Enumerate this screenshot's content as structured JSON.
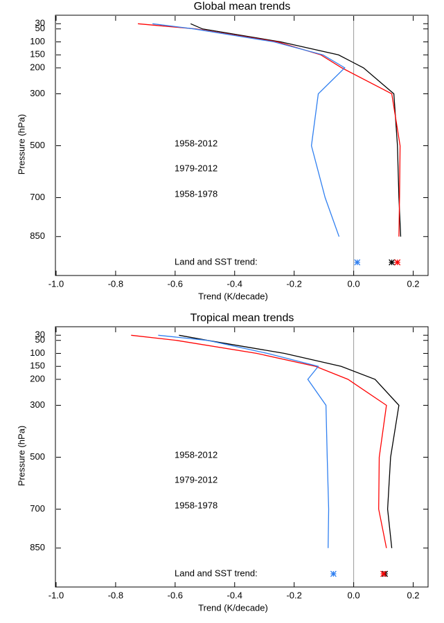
{
  "chart_data": [
    {
      "type": "line",
      "title": "Global mean trends",
      "x_label": "Trend (K/decade)",
      "y_label": "Pressure (hPa)",
      "y": [
        30,
        50,
        100,
        150,
        200,
        300,
        500,
        700,
        850
      ],
      "series": [
        {
          "name": "1958-2012",
          "color": "#000000",
          "values": [
            -0.548,
            -0.508,
            -0.245,
            -0.051,
            0.033,
            0.135,
            0.147,
            0.152,
            0.158
          ],
          "surface_trend": 0.128
        },
        {
          "name": "1979-2012",
          "color": "#ff0000",
          "values": [
            -0.725,
            -0.53,
            -0.256,
            -0.11,
            -0.04,
            0.128,
            0.156,
            0.154,
            0.152
          ],
          "surface_trend": 0.147
        },
        {
          "name": "1958-1978",
          "color": "#2f7ff0",
          "values": [
            -0.676,
            -0.536,
            -0.268,
            -0.103,
            -0.03,
            -0.119,
            -0.142,
            -0.096,
            -0.049
          ],
          "surface_trend": 0.012
        }
      ],
      "annotation": "Land and SST trend:",
      "xlim": [
        -1.0,
        0.25
      ],
      "xticks": [
        {
          "value": -1.0,
          "label": "-1.0"
        },
        -0.8,
        -0.6,
        -0.4,
        -0.2,
        {
          "value": 0,
          "label": "0.0"
        },
        0.2
      ],
      "ylim": [
        0,
        1000
      ],
      "y_inverted": true,
      "yticks": [
        30,
        50,
        100,
        150,
        200,
        300,
        500,
        700,
        850
      ]
    },
    {
      "type": "line",
      "title": "Tropical mean trends",
      "x_label": "Trend (K/decade)",
      "y_label": "Pressure (hPa)",
      "y": [
        30,
        50,
        100,
        150,
        200,
        300,
        500,
        700,
        850
      ],
      "series": [
        {
          "name": "1958-2012",
          "color": "#000000",
          "values": [
            -0.587,
            -0.49,
            -0.233,
            -0.042,
            0.072,
            0.152,
            0.124,
            0.114,
            0.128
          ],
          "surface_trend": 0.105
        },
        {
          "name": "1979-2012",
          "color": "#ff0000",
          "values": [
            -0.748,
            -0.594,
            -0.326,
            -0.128,
            -0.019,
            0.11,
            0.086,
            0.084,
            0.11
          ],
          "surface_trend": 0.1
        },
        {
          "name": "1958-1978",
          "color": "#2f7ff0",
          "values": [
            -0.657,
            -0.49,
            -0.29,
            -0.119,
            -0.154,
            -0.093,
            -0.089,
            -0.084,
            -0.086
          ],
          "surface_trend": -0.068
        }
      ],
      "annotation": "Land and SST trend:",
      "xlim": [
        -1.0,
        0.25
      ],
      "xticks": [
        {
          "value": -1.0,
          "label": "-1.0"
        },
        -0.8,
        -0.6,
        -0.4,
        -0.2,
        {
          "value": 0,
          "label": "0.0"
        },
        0.2
      ],
      "ylim": [
        0,
        1000
      ],
      "y_inverted": true,
      "yticks": [
        30,
        50,
        100,
        150,
        200,
        300,
        500,
        700,
        850
      ]
    }
  ]
}
